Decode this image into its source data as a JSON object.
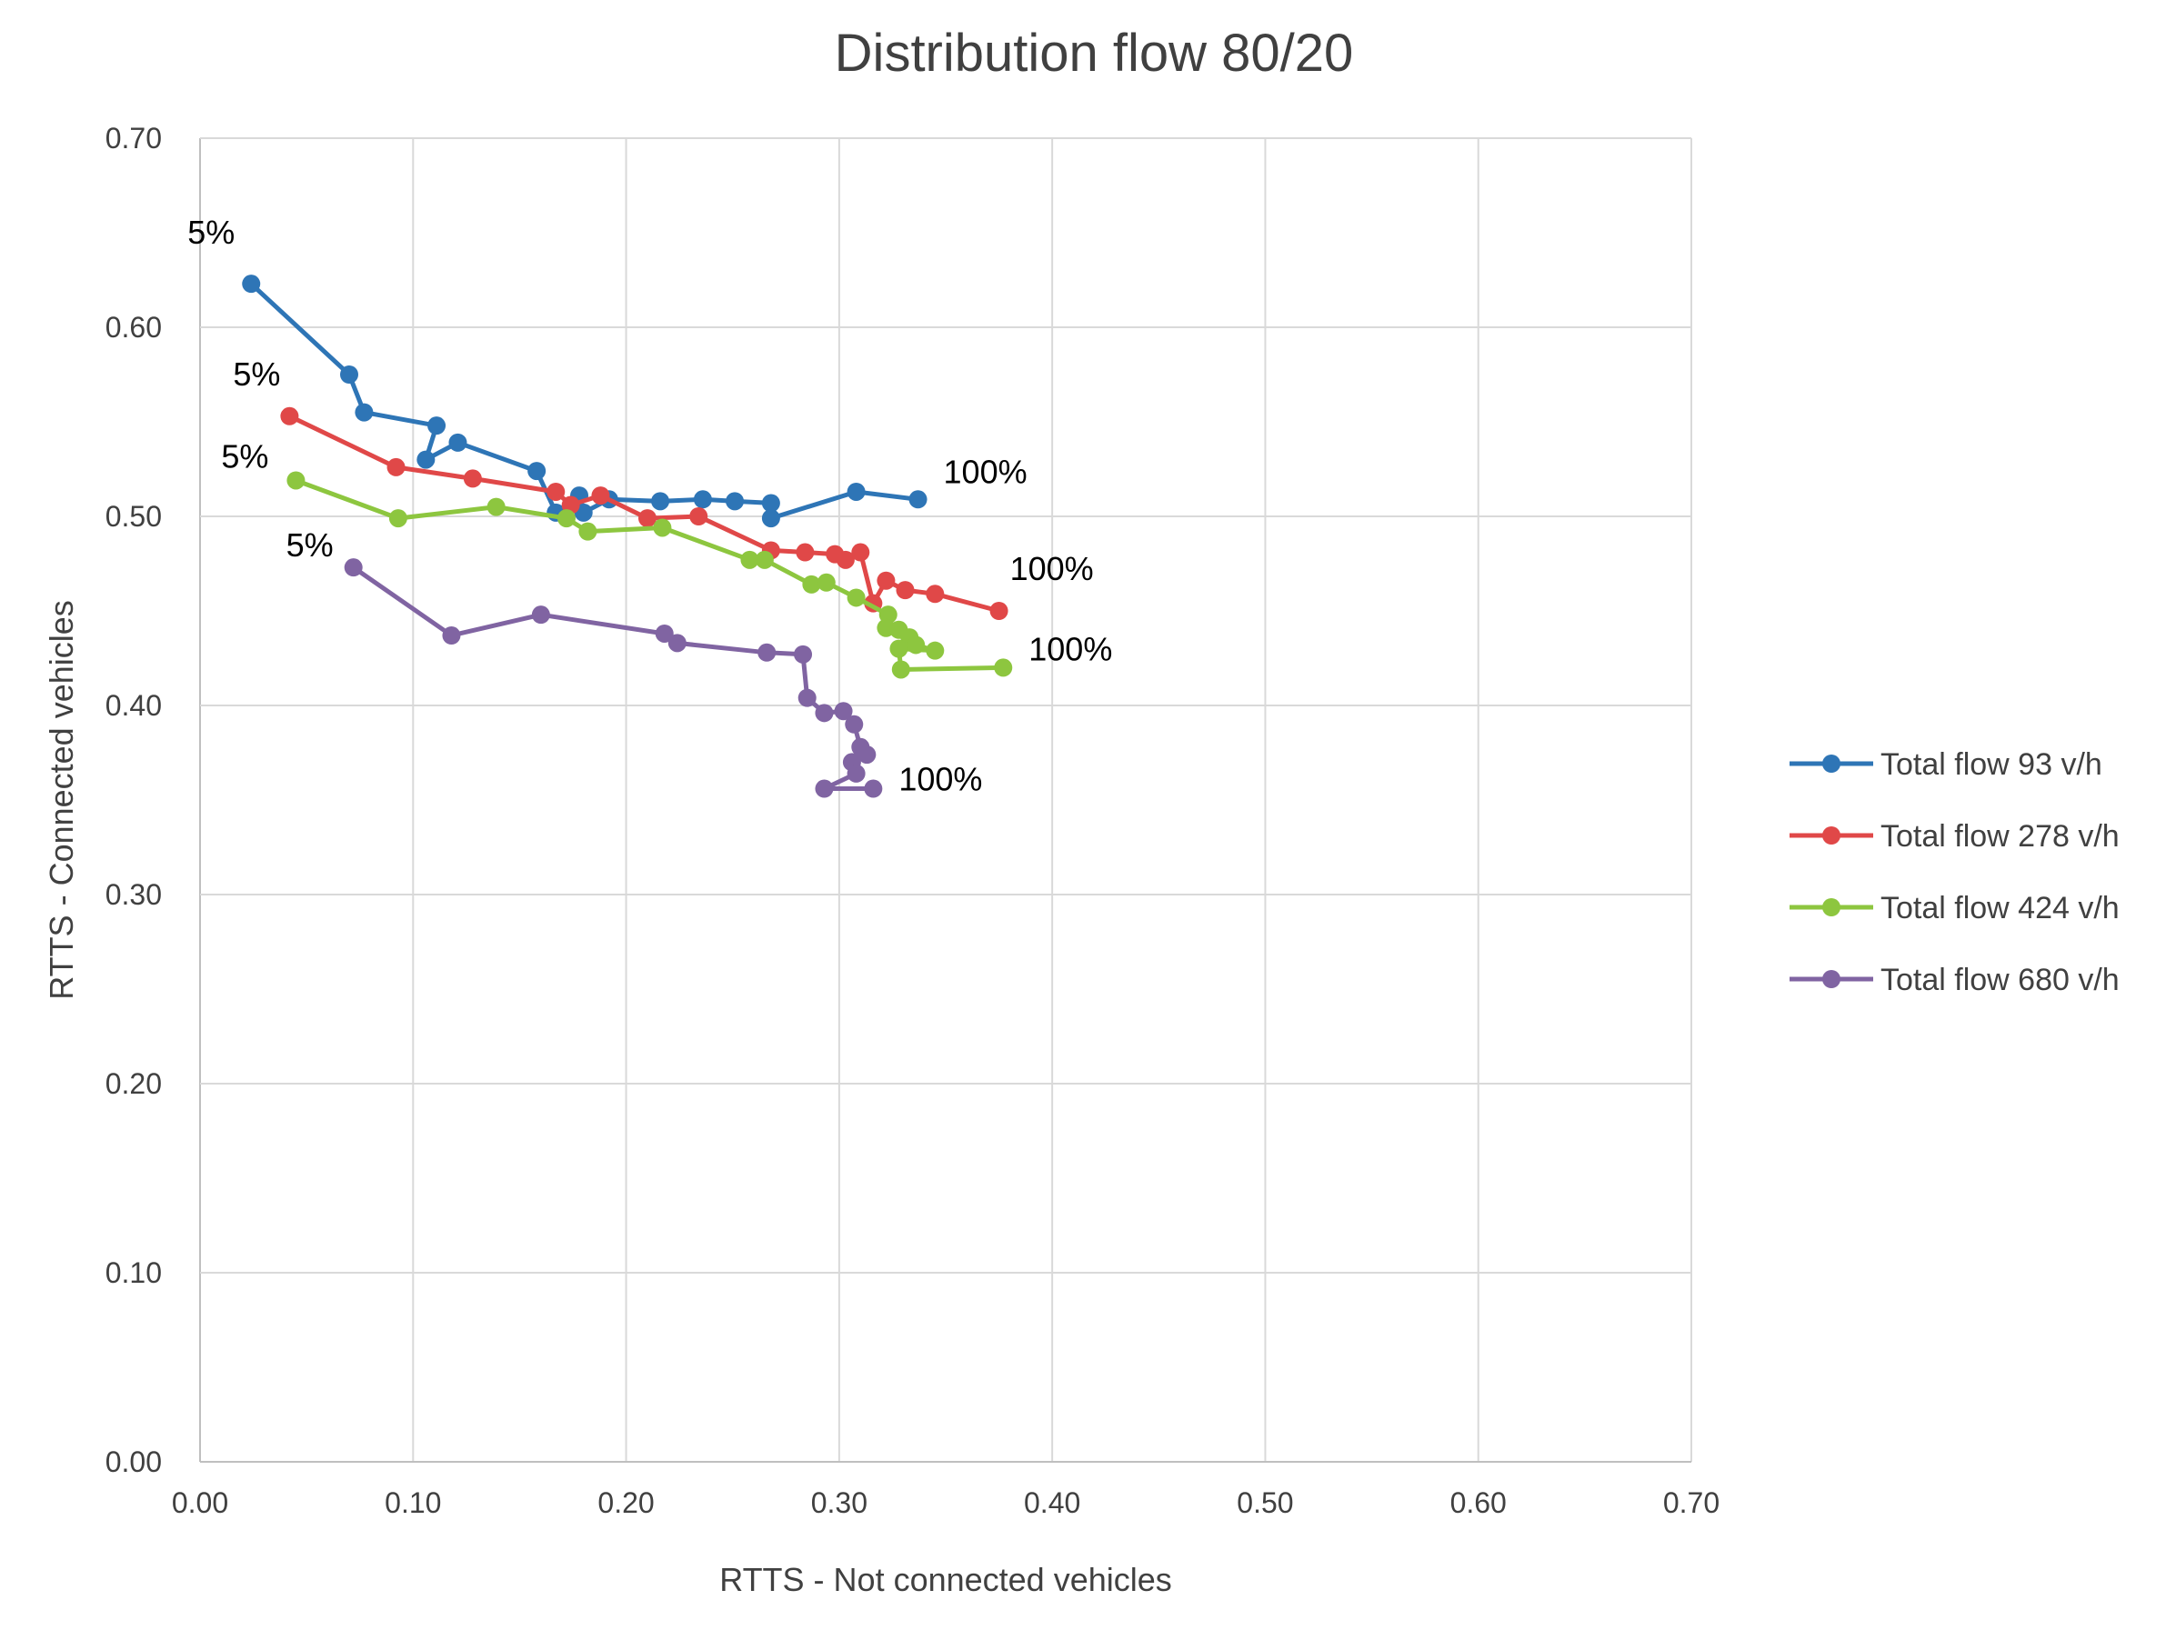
{
  "chart_data": {
    "type": "scatter",
    "title": "Distribution flow 80/20",
    "xlabel": "RTTS - Not connected vehicles",
    "ylabel": "RTTS - Connected vehicles",
    "xlim": [
      0,
      0.7
    ],
    "ylim": [
      0,
      0.7
    ],
    "x_ticks": [
      "0.00",
      "0.10",
      "0.20",
      "0.30",
      "0.40",
      "0.50",
      "0.60",
      "0.70"
    ],
    "y_ticks": [
      "0.00",
      "0.10",
      "0.20",
      "0.30",
      "0.40",
      "0.50",
      "0.60",
      "0.70"
    ],
    "grid": true,
    "legend_position": "right",
    "series": [
      {
        "name": "Total flow 93 v/h",
        "color": "#2E75B6",
        "points": [
          [
            0.024,
            0.623
          ],
          [
            0.07,
            0.575
          ],
          [
            0.077,
            0.555
          ],
          [
            0.111,
            0.548
          ],
          [
            0.106,
            0.53
          ],
          [
            0.121,
            0.539
          ],
          [
            0.158,
            0.524
          ],
          [
            0.167,
            0.502
          ],
          [
            0.178,
            0.511
          ],
          [
            0.18,
            0.502
          ],
          [
            0.192,
            0.509
          ],
          [
            0.216,
            0.508
          ],
          [
            0.236,
            0.509
          ],
          [
            0.251,
            0.508
          ],
          [
            0.268,
            0.507
          ],
          [
            0.268,
            0.499
          ],
          [
            0.308,
            0.513
          ],
          [
            0.337,
            0.509
          ]
        ],
        "start_label": "5%",
        "end_label": "100%"
      },
      {
        "name": "Total flow 278 v/h",
        "color": "#E04848",
        "points": [
          [
            0.042,
            0.553
          ],
          [
            0.092,
            0.526
          ],
          [
            0.128,
            0.52
          ],
          [
            0.167,
            0.513
          ],
          [
            0.174,
            0.506
          ],
          [
            0.188,
            0.511
          ],
          [
            0.21,
            0.499
          ],
          [
            0.234,
            0.5
          ],
          [
            0.268,
            0.482
          ],
          [
            0.284,
            0.481
          ],
          [
            0.298,
            0.48
          ],
          [
            0.303,
            0.477
          ],
          [
            0.31,
            0.481
          ],
          [
            0.316,
            0.454
          ],
          [
            0.322,
            0.466
          ],
          [
            0.331,
            0.461
          ],
          [
            0.345,
            0.459
          ],
          [
            0.375,
            0.45
          ]
        ],
        "start_label": "5%",
        "end_label": "100%"
      },
      {
        "name": "Total flow 424 v/h",
        "color": "#8DC63F",
        "points": [
          [
            0.045,
            0.519
          ],
          [
            0.093,
            0.499
          ],
          [
            0.139,
            0.505
          ],
          [
            0.172,
            0.499
          ],
          [
            0.182,
            0.492
          ],
          [
            0.217,
            0.494
          ],
          [
            0.258,
            0.477
          ],
          [
            0.265,
            0.477
          ],
          [
            0.287,
            0.464
          ],
          [
            0.294,
            0.465
          ],
          [
            0.308,
            0.457
          ],
          [
            0.323,
            0.448
          ],
          [
            0.322,
            0.441
          ],
          [
            0.328,
            0.44
          ],
          [
            0.333,
            0.436
          ],
          [
            0.336,
            0.432
          ],
          [
            0.345,
            0.429
          ],
          [
            0.328,
            0.43
          ],
          [
            0.329,
            0.419
          ],
          [
            0.377,
            0.42
          ]
        ],
        "start_label": "5%",
        "end_label": "100%"
      },
      {
        "name": "Total flow 680 v/h",
        "color": "#8064A2",
        "points": [
          [
            0.072,
            0.473
          ],
          [
            0.118,
            0.437
          ],
          [
            0.16,
            0.448
          ],
          [
            0.218,
            0.438
          ],
          [
            0.224,
            0.433
          ],
          [
            0.266,
            0.428
          ],
          [
            0.283,
            0.427
          ],
          [
            0.285,
            0.404
          ],
          [
            0.293,
            0.396
          ],
          [
            0.302,
            0.397
          ],
          [
            0.307,
            0.39
          ],
          [
            0.31,
            0.378
          ],
          [
            0.313,
            0.374
          ],
          [
            0.306,
            0.37
          ],
          [
            0.308,
            0.364
          ],
          [
            0.293,
            0.356
          ],
          [
            0.316,
            0.356
          ]
        ],
        "start_label": "5%",
        "end_label": "100%"
      }
    ]
  }
}
